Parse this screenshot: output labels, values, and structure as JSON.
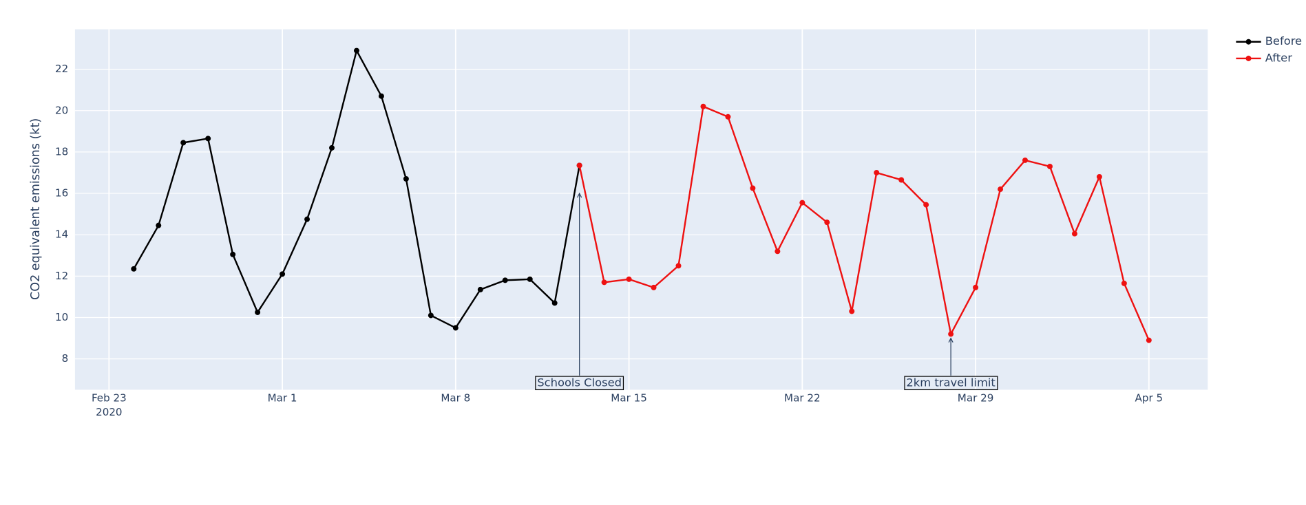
{
  "chart_data": {
    "type": "line",
    "y_label": "CO2 equivalent emissions (kt)",
    "series": [
      {
        "name": "Before",
        "color": "#000000",
        "x": [
          "2020-02-24",
          "2020-02-25",
          "2020-02-26",
          "2020-02-27",
          "2020-02-28",
          "2020-02-29",
          "2020-03-01",
          "2020-03-02",
          "2020-03-03",
          "2020-03-04",
          "2020-03-05",
          "2020-03-06",
          "2020-03-07",
          "2020-03-08",
          "2020-03-09",
          "2020-03-10",
          "2020-03-11",
          "2020-03-12",
          "2020-03-13"
        ],
        "values": [
          12.35,
          14.45,
          18.45,
          18.65,
          13.05,
          10.25,
          12.1,
          14.75,
          18.2,
          22.9,
          20.7,
          16.7,
          10.1,
          9.5,
          11.35,
          11.8,
          11.85,
          10.7,
          17.35
        ]
      },
      {
        "name": "After",
        "color": "#ee1111",
        "x": [
          "2020-03-13",
          "2020-03-14",
          "2020-03-15",
          "2020-03-16",
          "2020-03-17",
          "2020-03-18",
          "2020-03-19",
          "2020-03-20",
          "2020-03-21",
          "2020-03-22",
          "2020-03-23",
          "2020-03-24",
          "2020-03-25",
          "2020-03-26",
          "2020-03-27",
          "2020-03-28",
          "2020-03-29",
          "2020-03-30",
          "2020-03-31",
          "2020-04-01",
          "2020-04-02",
          "2020-04-03",
          "2020-04-04",
          "2020-04-05"
        ],
        "values": [
          17.35,
          11.7,
          11.85,
          11.45,
          12.5,
          20.2,
          19.7,
          16.25,
          13.2,
          15.55,
          14.6,
          10.3,
          17.0,
          16.65,
          15.45,
          9.2,
          11.45,
          16.2,
          17.6,
          17.3,
          14.05,
          16.8,
          11.65,
          8.9
        ]
      }
    ],
    "xlim": [
      "2020-02-21T15:00:00Z",
      "2020-04-07T09:00:00Z"
    ],
    "xticks": [
      {
        "value": "2020-02-23",
        "label": "Feb 23\n2020"
      },
      {
        "value": "2020-03-01",
        "label": "Mar 1"
      },
      {
        "value": "2020-03-08",
        "label": "Mar 8"
      },
      {
        "value": "2020-03-15",
        "label": "Mar 15"
      },
      {
        "value": "2020-03-22",
        "label": "Mar 22"
      },
      {
        "value": "2020-03-29",
        "label": "Mar 29"
      },
      {
        "value": "2020-04-05",
        "label": "Apr 5"
      }
    ],
    "ylim": [
      6.51,
      23.93
    ],
    "yticks": [
      8,
      10,
      12,
      14,
      16,
      18,
      20,
      22
    ],
    "grid": true,
    "legend": "outside-top-right",
    "annotations": [
      {
        "text": "Schools Closed",
        "x": "2020-03-13",
        "y": 16
      },
      {
        "text": "2km travel limit",
        "x": "2020-03-28",
        "y": 9
      }
    ]
  }
}
